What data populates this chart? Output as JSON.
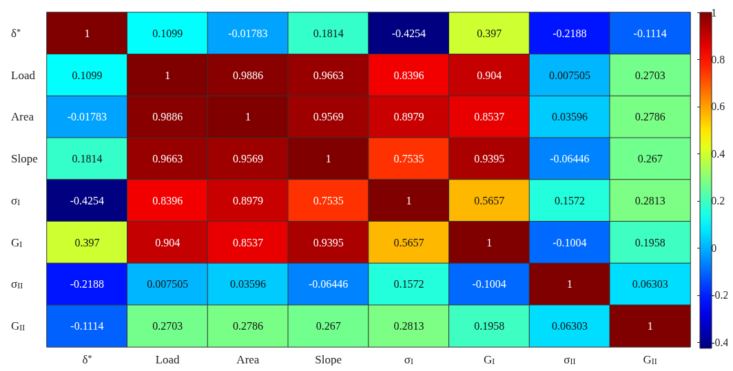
{
  "chart_data": {
    "type": "heatmap",
    "categories": [
      "δ$^{*}$",
      "Load",
      "Area",
      "Slope",
      "σ$_{I}$",
      "G$_{I}$",
      "σ$_{II}$",
      "G$_{II}$"
    ],
    "y_categories": [
      "δ$^{*}$",
      "Load",
      "Area",
      "Slope",
      "σ$_{I}$",
      "G$_{I}$",
      "σ$_{II}$",
      "G$_{II}$"
    ],
    "cells": [
      [
        1,
        0.1099,
        -0.01783,
        0.1814,
        -0.4254,
        0.397,
        -0.2188,
        -0.1114
      ],
      [
        0.1099,
        1,
        0.9886,
        0.9663,
        0.8396,
        0.904,
        0.007505,
        0.2703
      ],
      [
        -0.01783,
        0.9886,
        1,
        0.9569,
        0.8979,
        0.8537,
        0.03596,
        0.2786
      ],
      [
        0.1814,
        0.9663,
        0.9569,
        1,
        0.7535,
        0.9395,
        -0.06446,
        0.267
      ],
      [
        -0.4254,
        0.8396,
        0.8979,
        0.7535,
        1,
        0.5657,
        0.1572,
        0.2813
      ],
      [
        0.397,
        0.904,
        0.8537,
        0.9395,
        0.5657,
        1,
        -0.1004,
        0.1958
      ],
      [
        -0.2188,
        0.007505,
        0.03596,
        -0.06446,
        0.1572,
        -0.1004,
        1,
        0.06303
      ],
      [
        -0.1114,
        0.2703,
        0.2786,
        0.267,
        0.2813,
        0.1958,
        0.06303,
        1
      ]
    ],
    "clim": [
      -0.4254,
      1
    ],
    "cticks": [
      -0.4,
      -0.2,
      0,
      0.2,
      0.4,
      0.6,
      0.8,
      1
    ],
    "data_labels": true
  }
}
